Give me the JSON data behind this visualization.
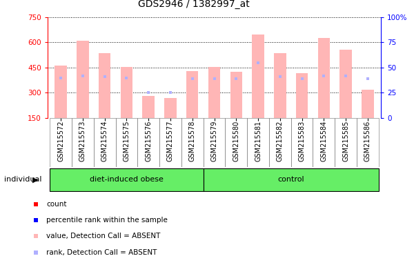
{
  "title": "GDS2946 / 1382997_at",
  "samples": [
    "GSM215572",
    "GSM215573",
    "GSM215574",
    "GSM215575",
    "GSM215576",
    "GSM215577",
    "GSM215578",
    "GSM215579",
    "GSM215580",
    "GSM215581",
    "GSM215582",
    "GSM215583",
    "GSM215584",
    "GSM215585",
    "GSM215586"
  ],
  "values": [
    460,
    610,
    535,
    455,
    280,
    270,
    430,
    455,
    425,
    645,
    535,
    415,
    625,
    555,
    320
  ],
  "ranks": [
    40,
    42,
    41,
    40,
    25,
    25,
    39,
    39,
    39,
    55,
    41,
    39,
    42,
    42,
    39
  ],
  "detection_call": [
    "A",
    "A",
    "A",
    "A",
    "A",
    "A",
    "A",
    "A",
    "A",
    "A",
    "A",
    "A",
    "A",
    "A",
    "A"
  ],
  "group_dio_indices": [
    0,
    1,
    2,
    3,
    4,
    5,
    6
  ],
  "group_ctrl_indices": [
    7,
    8,
    9,
    10,
    11,
    12,
    13,
    14
  ],
  "ylim_left": [
    150,
    750
  ],
  "ylim_right": [
    0,
    100
  ],
  "yticks_left": [
    150,
    300,
    450,
    600,
    750
  ],
  "yticks_right": [
    0,
    25,
    50,
    75,
    100
  ],
  "bar_color_absent": "#FFB6B6",
  "rank_color_absent": "#B0B0FF",
  "bar_color_present": "#FF0000",
  "rank_color_present": "#0000FF",
  "group_color": "#66EE66",
  "bg_gray": "#CCCCCC",
  "plot_bg": "#FFFFFF",
  "legend_items": [
    {
      "color": "#FF0000",
      "label": "count"
    },
    {
      "color": "#0000FF",
      "label": "percentile rank within the sample"
    },
    {
      "color": "#FFB6B6",
      "label": "value, Detection Call = ABSENT"
    },
    {
      "color": "#B0B0FF",
      "label": "rank, Detection Call = ABSENT"
    }
  ]
}
